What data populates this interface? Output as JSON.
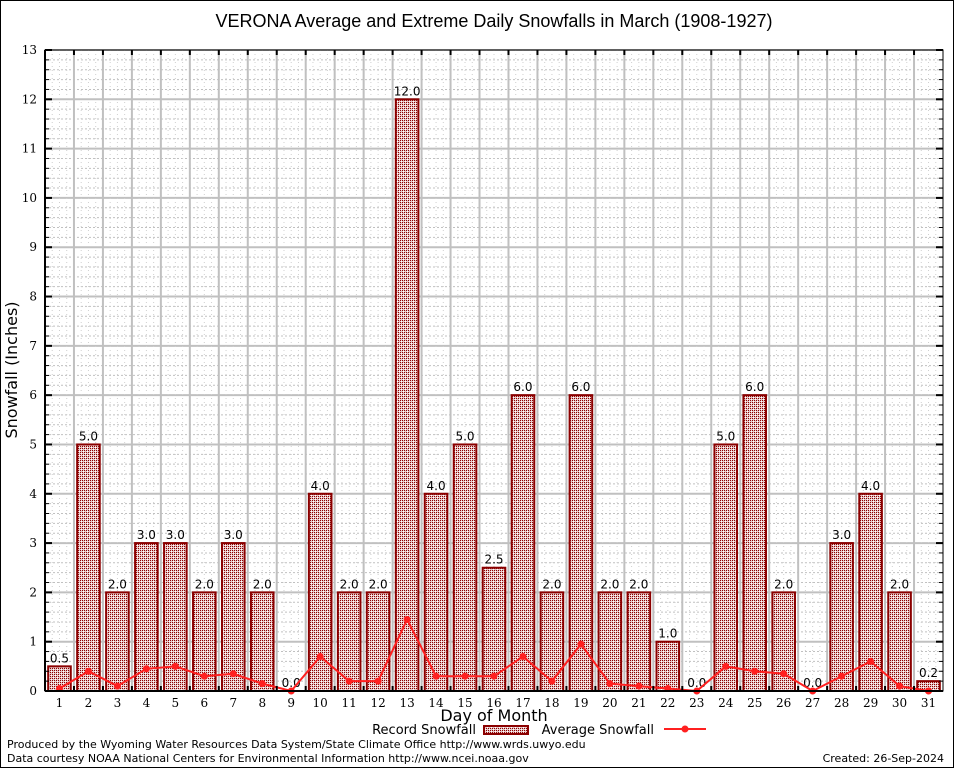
{
  "chart_data": {
    "type": "bar",
    "title": "VERONA Average and Extreme Daily Snowfalls in March (1908-1927)",
    "xlabel": "Day of Month",
    "ylabel": "Snowfall (Inches)",
    "ylim": [
      0,
      13
    ],
    "yticks": [
      "0",
      "1",
      "2",
      "3",
      "4",
      "5",
      "6",
      "7",
      "8",
      "9",
      "10",
      "11",
      "12",
      "13"
    ],
    "grid": true,
    "categories": [
      "1",
      "2",
      "3",
      "4",
      "5",
      "6",
      "7",
      "8",
      "9",
      "10",
      "11",
      "12",
      "13",
      "14",
      "15",
      "16",
      "17",
      "18",
      "19",
      "20",
      "21",
      "22",
      "23",
      "24",
      "25",
      "26",
      "27",
      "28",
      "29",
      "30",
      "31"
    ],
    "series": [
      {
        "name": "Record Snowfall",
        "type": "bar",
        "color": "#8b0000",
        "values": [
          0.5,
          5.0,
          2.0,
          3.0,
          3.0,
          2.0,
          3.0,
          2.0,
          0.0,
          4.0,
          2.0,
          2.0,
          12.0,
          4.0,
          5.0,
          2.5,
          6.0,
          2.0,
          6.0,
          2.0,
          2.0,
          1.0,
          0.0,
          5.0,
          6.0,
          2.0,
          0.0,
          3.0,
          4.0,
          2.0,
          0.2
        ],
        "labels": [
          "0.5",
          "5.0",
          "2.0",
          "3.0",
          "3.0",
          "2.0",
          "3.0",
          "2.0",
          "0.0",
          "4.0",
          "2.0",
          "2.0",
          "12.0",
          "4.0",
          "5.0",
          "2.5",
          "6.0",
          "2.0",
          "6.0",
          "2.0",
          "2.0",
          "1.0",
          "0.0",
          "5.0",
          "6.0",
          "2.0",
          "0.0",
          "3.0",
          "4.0",
          "2.0",
          "0.2"
        ]
      },
      {
        "name": "Average Snowfall",
        "type": "line",
        "color": "#ff2020",
        "values": [
          0.05,
          0.4,
          0.1,
          0.45,
          0.5,
          0.3,
          0.35,
          0.15,
          0.0,
          0.7,
          0.2,
          0.2,
          1.45,
          0.3,
          0.3,
          0.3,
          0.7,
          0.2,
          0.95,
          0.15,
          0.1,
          0.05,
          0.0,
          0.5,
          0.4,
          0.35,
          0.0,
          0.3,
          0.6,
          0.1,
          0.0
        ]
      }
    ],
    "legend": {
      "placement": "bottom-center",
      "entries": [
        "Record Snowfall",
        "Average Snowfall"
      ]
    }
  },
  "footer": {
    "line1": "Produced by the Wyoming Water Resources Data System/State Climate Office http://www.wrds.uwyo.edu",
    "line2": "Data courtesy NOAA National Centers for Environmental Information http://www.ncei.noaa.gov",
    "created": "Created: 26-Sep-2024"
  }
}
